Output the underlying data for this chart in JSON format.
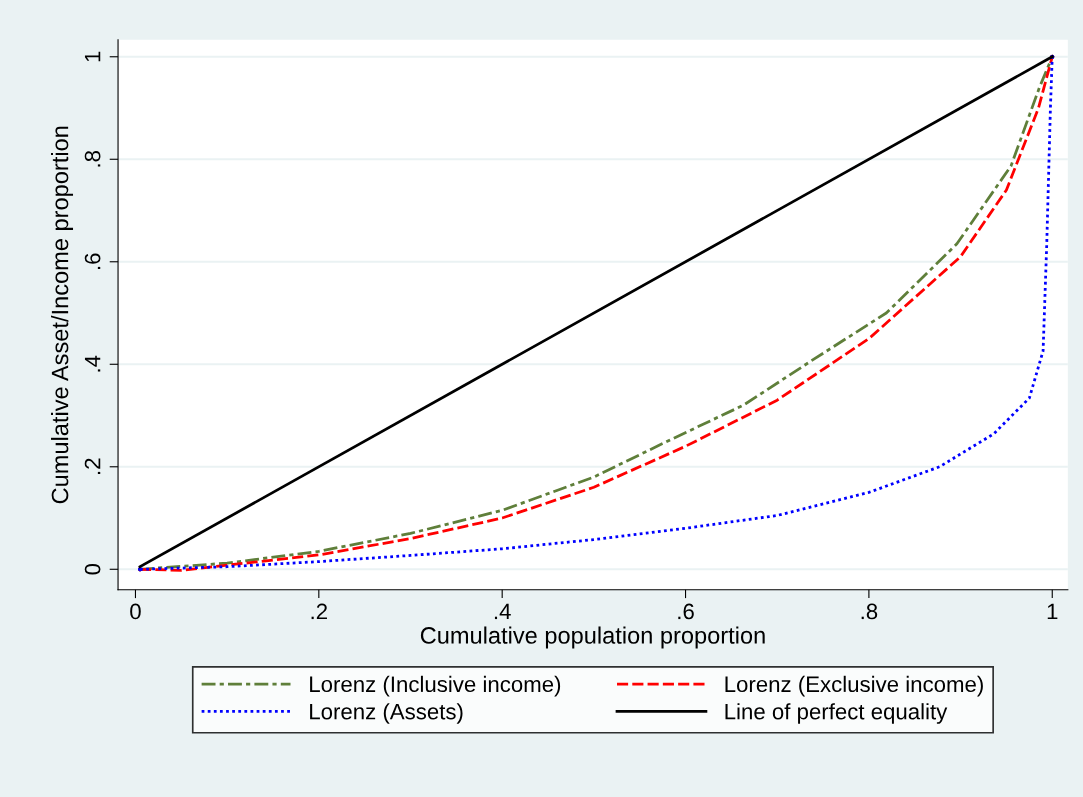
{
  "chart_data": {
    "type": "line",
    "xlabel": "Cumulative population proportion",
    "ylabel": "Cumulative Asset/Income proportion",
    "xlim": [
      -0.019,
      1.017
    ],
    "ylim": [
      -0.04,
      1.033
    ],
    "xticks": [
      0,
      {
        "value": 0.2,
        "label": ".2"
      },
      {
        "value": 0.4,
        "label": ".4"
      },
      {
        "value": 0.6,
        "label": ".6"
      },
      {
        "value": 0.8,
        "label": ".8"
      },
      1
    ],
    "yticks": [
      0,
      {
        "value": 0.2,
        "label": ".2"
      },
      {
        "value": 0.4,
        "label": ".4"
      },
      {
        "value": 0.6,
        "label": ".6"
      },
      {
        "value": 0.8,
        "label": ".8"
      },
      1
    ],
    "grid": "y",
    "legend": "bottom",
    "marker": "none",
    "series": [
      {
        "name": "Lorenz (Inclusive income)",
        "color": "#5f7f3a",
        "line_style": "dashdot",
        "x": [
          0.005,
          0.1,
          0.2,
          0.3,
          0.4,
          0.5,
          0.585,
          0.663,
          0.74,
          0.819,
          0.896,
          0.955,
          0.986,
          1
        ],
        "values": [
          0,
          0.012,
          0.035,
          0.07,
          0.115,
          0.18,
          0.254,
          0.32,
          0.41,
          0.5,
          0.635,
          0.787,
          0.94,
          1
        ]
      },
      {
        "name": "Lorenz (Exclusive income)",
        "color": "#ff0000",
        "line_style": "dashed",
        "x": [
          0.005,
          0.05,
          0.1,
          0.2,
          0.3,
          0.4,
          0.5,
          0.6,
          0.7,
          0.8,
          0.9,
          0.95,
          0.985,
          1
        ],
        "values": [
          0,
          -0.002,
          0.008,
          0.028,
          0.06,
          0.1,
          0.16,
          0.24,
          0.33,
          0.45,
          0.61,
          0.74,
          0.9,
          1
        ]
      },
      {
        "name": "Lorenz (Assets)",
        "color": "#0000ff",
        "line_style": "dotted",
        "x": [
          0.005,
          0.1,
          0.2,
          0.3,
          0.4,
          0.5,
          0.6,
          0.7,
          0.8,
          0.877,
          0.936,
          0.975,
          0.99,
          0.994,
          0.998,
          1
        ],
        "values": [
          0,
          0.005,
          0.015,
          0.027,
          0.04,
          0.058,
          0.08,
          0.105,
          0.15,
          0.2,
          0.264,
          0.334,
          0.426,
          0.635,
          0.9,
          1
        ]
      },
      {
        "name": "Line of perfect equality",
        "color": "#000000",
        "line_style": "solid",
        "x": [
          0.005,
          1
        ],
        "values": [
          0.005,
          1
        ]
      }
    ]
  }
}
